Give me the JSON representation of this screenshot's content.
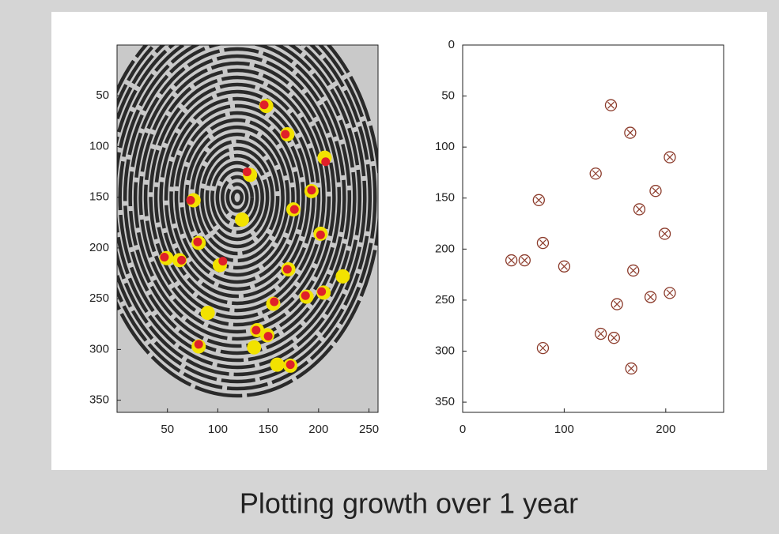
{
  "chart_data": [
    {
      "type": "scatter",
      "xlim": [
        0,
        259
      ],
      "ylim": [
        0,
        362
      ],
      "y_reversed": true,
      "xticks": [
        50,
        100,
        150,
        200,
        250
      ],
      "yticks": [
        50,
        100,
        150,
        200,
        250,
        300,
        350
      ],
      "series": [
        {
          "color": "#f2e200",
          "marker": "disc-large",
          "x": [
            148,
            169,
            206,
            132,
            193,
            76,
            175,
            202,
            124,
            81,
            49,
            62,
            102,
            170,
            224,
            205,
            188,
            155,
            90,
            139,
            149,
            136,
            81,
            159,
            172
          ],
          "values": [
            60,
            88,
            111,
            128,
            144,
            153,
            162,
            186,
            172,
            195,
            210,
            212,
            217,
            221,
            228,
            244,
            248,
            255,
            264,
            281,
            286,
            298,
            297,
            315,
            316
          ]
        },
        {
          "color": "#e0202a",
          "marker": "disc-small",
          "x": [
            146,
            167,
            207,
            129,
            193,
            73,
            176,
            202,
            80,
            47,
            64,
            105,
            169,
            203,
            187,
            156,
            81,
            138,
            150,
            172
          ],
          "values": [
            59,
            88,
            115,
            125,
            143,
            153,
            162,
            187,
            194,
            209,
            212,
            213,
            221,
            243,
            247,
            253,
            295,
            281,
            287,
            315
          ]
        }
      ]
    },
    {
      "type": "scatter",
      "xlim": [
        0,
        257
      ],
      "ylim": [
        0,
        360
      ],
      "y_reversed": true,
      "xticks": [
        0,
        100,
        200
      ],
      "yticks": [
        0,
        50,
        100,
        150,
        200,
        250,
        300,
        350
      ],
      "series": [
        {
          "color": "#8b3a2a",
          "marker": "circle-x",
          "x": [
            146,
            165,
            204,
            131,
            190,
            75,
            174,
            199,
            79,
            48,
            61,
            100,
            168,
            204,
            185,
            152,
            136,
            149,
            79,
            166
          ],
          "values": [
            59,
            86,
            110,
            126,
            143,
            152,
            161,
            185,
            194,
            211,
            211,
            217,
            221,
            243,
            247,
            254,
            283,
            287,
            297,
            317
          ]
        }
      ]
    }
  ],
  "caption": "Plotting growth over 1 year"
}
